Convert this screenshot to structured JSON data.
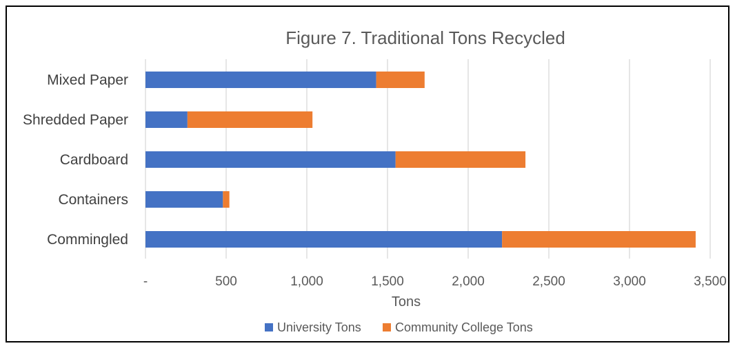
{
  "chart_data": {
    "type": "bar",
    "orientation": "horizontal",
    "stacked": true,
    "title": "Figure 7. Traditional Tons Recycled",
    "xlabel": "Tons",
    "ylabel": "",
    "categories": [
      "Mixed Paper",
      "Shredded Paper",
      "Cardboard",
      "Containers",
      "Commingled"
    ],
    "series": [
      {
        "name": "University Tons",
        "color": "#4472C4",
        "values": [
          1430,
          260,
          1550,
          480,
          2210
        ]
      },
      {
        "name": "Community College Tons",
        "color": "#ED7D31",
        "values": [
          300,
          775,
          805,
          40,
          1200
        ]
      }
    ],
    "xlim": [
      0,
      3500
    ],
    "ticks": [
      0,
      500,
      1000,
      1500,
      2000,
      2500,
      3000,
      3500
    ],
    "tick_labels": [
      "-",
      "500",
      "1,000",
      "1,500",
      "2,000",
      "2,500",
      "3,000",
      "3,500"
    ],
    "grid": "vertical",
    "legend": "bottom"
  }
}
